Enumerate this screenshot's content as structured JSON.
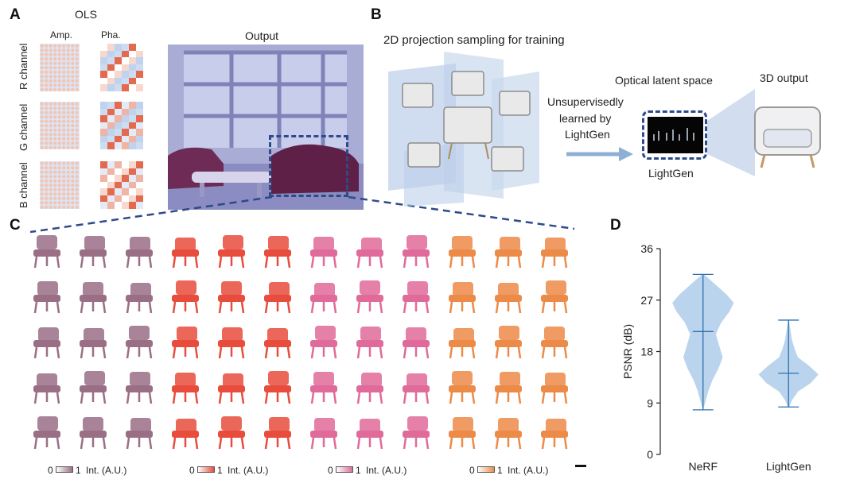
{
  "panel_labels": {
    "a": "A",
    "b": "B",
    "c": "C",
    "d": "D"
  },
  "panel_a": {
    "ols_title": "OLS",
    "amp_label": "Amp.",
    "pha_label": "Pha.",
    "output_label": "Output",
    "channels": [
      "R channel",
      "G channel",
      "B channel"
    ]
  },
  "panel_b": {
    "sampling_title": "2D projection sampling for training",
    "arrow_text_1": "Unsupervisedly",
    "arrow_text_2": "learned by",
    "arrow_text_3": "LightGen",
    "latent_label": "Optical latent space",
    "output_label": "3D output",
    "box_label": "LightGen"
  },
  "panel_c": {
    "colorbars": [
      {
        "min": "0",
        "max": "1",
        "unit": "Int. (A.U.)",
        "color": "#9a6f86"
      },
      {
        "min": "0",
        "max": "1",
        "unit": "Int. (A.U.)",
        "color": "#e74c3c"
      },
      {
        "min": "0",
        "max": "1",
        "unit": "Int. (A.U.)",
        "color": "#e06a9a"
      },
      {
        "min": "0",
        "max": "1",
        "unit": "Int. (A.U.)",
        "color": "#ec8a48"
      }
    ],
    "group_colors": [
      "#9a6f86",
      "#e74c3c",
      "#e06a9a",
      "#ec8a48"
    ]
  },
  "chart_data": {
    "type": "violin",
    "title": "",
    "ylabel": "PSNR (dB)",
    "xlabel": "",
    "ylim": [
      0,
      36
    ],
    "yticks": [
      0,
      9,
      18,
      27,
      36
    ],
    "categories": [
      "NeRF",
      "LightGen"
    ],
    "series": [
      {
        "name": "NeRF",
        "min": 7.8,
        "max": 31.5,
        "median": 21.5,
        "density": [
          [
            7.8,
            0.0
          ],
          [
            9,
            0.05
          ],
          [
            11,
            0.12
          ],
          [
            13,
            0.22
          ],
          [
            15,
            0.36
          ],
          [
            17,
            0.46
          ],
          [
            19,
            0.38
          ],
          [
            21,
            0.3
          ],
          [
            23,
            0.42
          ],
          [
            25,
            0.62
          ],
          [
            26.5,
            0.72
          ],
          [
            28,
            0.55
          ],
          [
            30,
            0.25
          ],
          [
            31.5,
            0.02
          ]
        ]
      },
      {
        "name": "LightGen",
        "min": 8.3,
        "max": 23.5,
        "median": 14.2,
        "density": [
          [
            8.3,
            0.02
          ],
          [
            9.5,
            0.08
          ],
          [
            11,
            0.22
          ],
          [
            12.5,
            0.52
          ],
          [
            14,
            0.7
          ],
          [
            15.5,
            0.48
          ],
          [
            17,
            0.22
          ],
          [
            18.5,
            0.14
          ],
          [
            20,
            0.08
          ],
          [
            22,
            0.04
          ],
          [
            23.5,
            0.01
          ]
        ]
      }
    ],
    "color": "#aecdeb"
  }
}
